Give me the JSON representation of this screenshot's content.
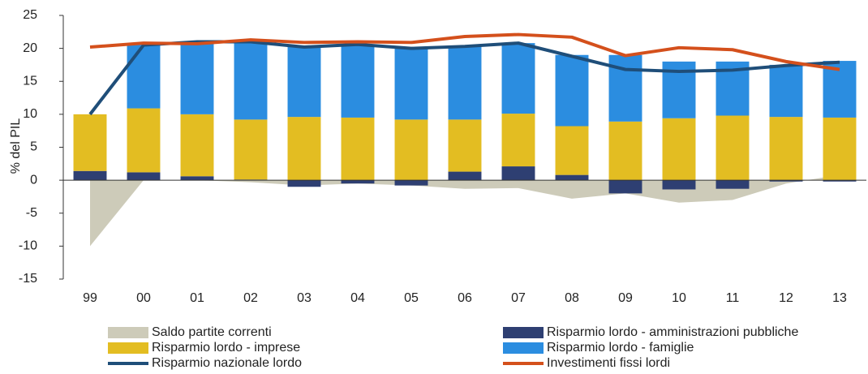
{
  "chart_data": {
    "type": "combo",
    "y_label": "% del PIL",
    "categories": [
      "99",
      "00",
      "01",
      "02",
      "03",
      "04",
      "05",
      "06",
      "07",
      "08",
      "09",
      "10",
      "11",
      "12",
      "13"
    ],
    "ylim": [
      -15,
      25
    ],
    "yticks": [
      -15,
      -10,
      -5,
      0,
      5,
      10,
      15,
      20,
      25
    ],
    "series": [
      {
        "name": "Saldo partite correnti",
        "type": "area",
        "color": "#cdcbb9",
        "values": [
          -10,
          0,
          0,
          -0.3,
          -0.8,
          -0.5,
          -0.8,
          -1.3,
          -1.2,
          -2.8,
          -2,
          -3.4,
          -3,
          -0.5,
          0.8
        ]
      },
      {
        "name": "Risparmio lordo - amministrazioni pubbliche",
        "type": "bar",
        "color": "#2e3f72",
        "values": [
          1.4,
          1.2,
          0.6,
          0.1,
          -1,
          -0.5,
          -0.8,
          1.3,
          2.1,
          0.8,
          -2,
          -1.4,
          -1.3,
          -0.2,
          -0.2
        ]
      },
      {
        "name": "Risparmio lordo - imprese",
        "type": "bar",
        "color": "#e3bd22",
        "values": [
          8.6,
          9.7,
          9.4,
          9.1,
          9.6,
          9.5,
          9.2,
          7.9,
          8.0,
          7.4,
          8.9,
          9.4,
          9.8,
          9.6,
          9.5
        ]
      },
      {
        "name": "Risparmio lordo - famiglie",
        "type": "bar",
        "color": "#2b8de0",
        "values": [
          0,
          9.9,
          11,
          11.8,
          10.7,
          11.1,
          11,
          11.1,
          10.7,
          10.8,
          10.1,
          8.6,
          8.2,
          7.9,
          8.6
        ]
      },
      {
        "name": "Risparmio nazionale lordo",
        "type": "line",
        "color": "#1f4e79",
        "values": [
          10,
          20.5,
          21,
          21,
          20.2,
          20.6,
          20,
          20.3,
          20.8,
          18.8,
          16.8,
          16.5,
          16.7,
          17.4,
          17.9
        ]
      },
      {
        "name": "Investimenti fissi lordi",
        "type": "line",
        "color": "#d4501c",
        "values": [
          20.2,
          20.8,
          20.7,
          21.3,
          20.9,
          21,
          20.9,
          21.8,
          22.1,
          21.7,
          18.9,
          20.1,
          19.8,
          18,
          16.8
        ]
      }
    ]
  }
}
